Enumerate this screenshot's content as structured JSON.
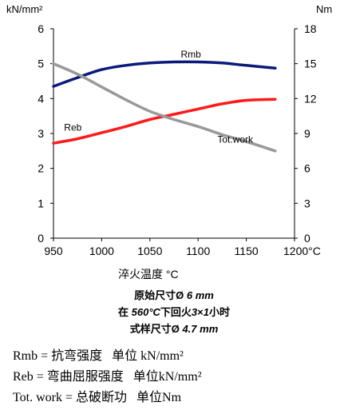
{
  "chart_data": {
    "type": "line",
    "x": [
      950,
      975,
      1000,
      1025,
      1050,
      1075,
      1100,
      1125,
      1150,
      1180
    ],
    "xticks": [
      "950",
      "1000",
      "1050",
      "1100",
      "1150",
      "1200°C"
    ],
    "xtick_values": [
      950,
      1000,
      1050,
      1100,
      1150,
      1200
    ],
    "xlim": [
      950,
      1200
    ],
    "ylim": [
      0,
      6
    ],
    "ylim_right": [
      0,
      18
    ],
    "yticks": [
      "0",
      "1",
      "2",
      "3",
      "4",
      "5",
      "6"
    ],
    "yticks_right": [
      "0",
      "3",
      "6",
      "9",
      "12",
      "15",
      "18"
    ],
    "ylabel": "kN/mm²",
    "ylabel_right": "Nm",
    "xlabel": "淬火温度 °C",
    "grid": false,
    "series": [
      {
        "name": "Rmb",
        "axis": "left",
        "color": "#0a1a7a",
        "values": [
          4.35,
          4.6,
          4.83,
          4.95,
          5.02,
          5.05,
          5.05,
          5.02,
          4.95,
          4.87
        ]
      },
      {
        "name": "Reb",
        "axis": "left",
        "color": "#ff1a1a",
        "values": [
          2.72,
          2.85,
          3.02,
          3.2,
          3.4,
          3.55,
          3.7,
          3.85,
          3.95,
          3.98
        ]
      },
      {
        "name": "Tot.work",
        "axis": "right",
        "color": "#999999",
        "values": [
          15.0,
          14.1,
          13.0,
          11.9,
          10.9,
          10.2,
          9.6,
          8.9,
          8.3,
          7.5
        ]
      }
    ],
    "annotations": [
      {
        "text": "Rmb",
        "series": "Rmb"
      },
      {
        "text": "Reb",
        "series": "Reb"
      },
      {
        "text": "Tot.work",
        "series": "Tot.work"
      }
    ]
  },
  "caption": {
    "line1_pre": "原始尺寸Ø ",
    "line1_em": "6 mm",
    "line2_pre": "在 ",
    "line2_em1": "560°C",
    "line2_mid1": "下回火",
    "line2_em2": "3",
    "line2_mid2": "×",
    "line2_em3": "1",
    "line2_post": "小时",
    "line3_pre": "式样尺寸Ø ",
    "line3_em": "4.7 mm"
  },
  "legend_text": [
    "Rmb = 抗弯强度   单位 kN/mm²",
    "Reb = 弯曲屈服强度   单位kN/mm²",
    "Tot. work = 总破断功   单位Nm"
  ]
}
